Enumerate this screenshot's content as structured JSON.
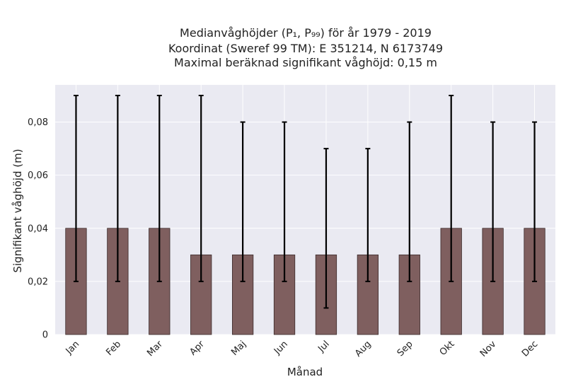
{
  "chart_data": {
    "type": "bar",
    "title_lines": [
      "Medianvåghöjder (P₁, P₉₉) för år 1979 - 2019",
      "Koordinat (Sweref 99 TM): E 351214, N 6173749",
      "Maximal beräknad signifikant våghöjd: 0,15 m"
    ],
    "xlabel": "Månad",
    "ylabel": "Signifikant våghöjd (m)",
    "categories": [
      "Jan",
      "Feb",
      "Mar",
      "Apr",
      "Maj",
      "Jun",
      "Jul",
      "Aug",
      "Sep",
      "Okt",
      "Nov",
      "Dec"
    ],
    "values": [
      0.04,
      0.04,
      0.04,
      0.03,
      0.03,
      0.03,
      0.03,
      0.03,
      0.03,
      0.04,
      0.04,
      0.04
    ],
    "error_low": [
      0.02,
      0.02,
      0.02,
      0.02,
      0.02,
      0.02,
      0.01,
      0.02,
      0.02,
      0.02,
      0.02,
      0.02
    ],
    "error_high": [
      0.09,
      0.09,
      0.09,
      0.09,
      0.08,
      0.08,
      0.07,
      0.07,
      0.08,
      0.09,
      0.08,
      0.08
    ],
    "ylim": [
      0,
      0.094
    ],
    "yticks": [
      0,
      0.02,
      0.04,
      0.06,
      0.08
    ],
    "ytick_labels": [
      "0",
      "0,02",
      "0,04",
      "0,06",
      "0,08"
    ],
    "grid": true,
    "colors": {
      "bar": "#7f5f5f",
      "bar_edge": "#3a2a2a",
      "error": "#000000",
      "plot_bg": "#eaeaf2",
      "grid": "#ffffff"
    }
  }
}
